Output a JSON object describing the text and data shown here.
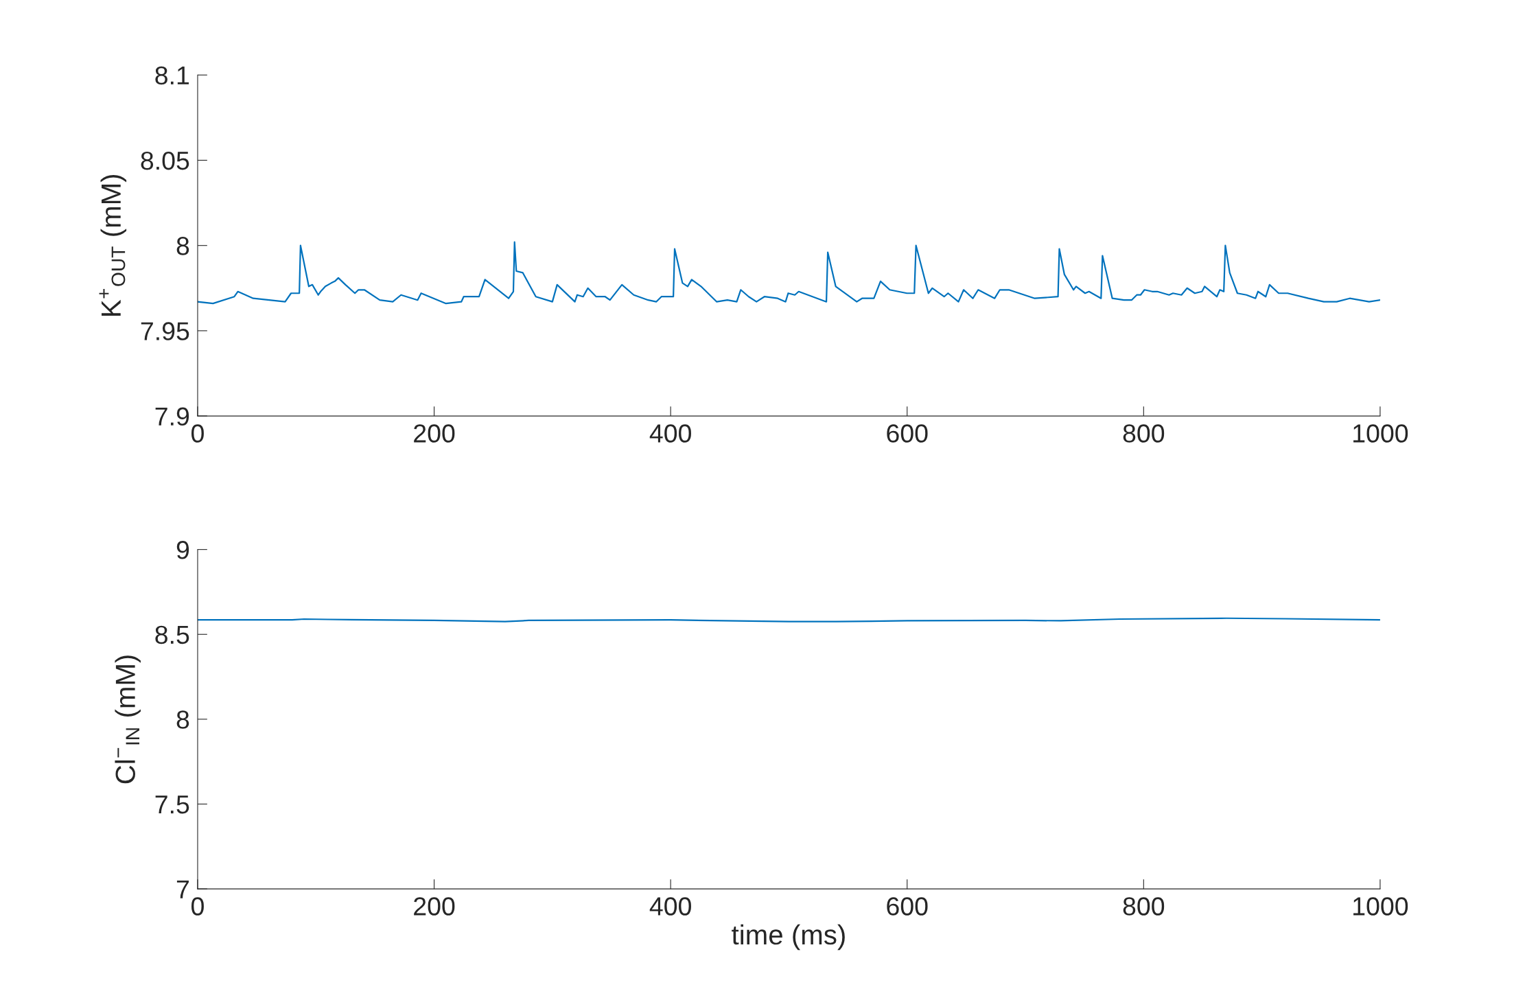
{
  "chart_data": [
    {
      "type": "line",
      "ylabel": "K$^{+}$$_{OUT}$ (mM)",
      "xlim": [
        0,
        1000
      ],
      "xticks": [
        0,
        200,
        400,
        600,
        800,
        1000
      ],
      "ylim": [
        7.9,
        8.1
      ],
      "yticks": [
        7.9,
        7.95,
        8,
        8.05,
        8.1
      ],
      "grid": false,
      "line_style": "solid",
      "marker": "none",
      "series": [
        {
          "color": "#0072bd",
          "x": [
            0,
            13,
            31,
            34,
            47,
            74,
            79,
            81,
            86,
            87,
            94,
            97,
            102,
            104,
            108,
            113,
            116,
            119,
            125,
            133,
            136,
            141,
            154,
            165,
            172,
            186,
            189,
            210,
            223,
            225,
            238,
            243,
            263,
            267,
            268,
            269.5,
            275,
            286,
            300,
            304,
            319,
            321,
            326,
            330,
            337,
            344.6,
            348.7,
            358.8,
            368.8,
            381,
            387.8,
            392.2,
            402.3,
            403.4,
            410,
            414.4,
            417.8,
            425.7,
            439,
            448,
            455.9,
            459.3,
            466,
            472.6,
            479.3,
            490.5,
            497.2,
            499.4,
            505,
            508.3,
            531.7,
            532.9,
            539.6,
            557.4,
            561.9,
            571.9,
            577.5,
            585.3,
            599.8,
            606.1,
            607.5,
            618,
            621.3,
            631.3,
            634.6,
            643.4,
            647.8,
            655.6,
            660.1,
            674,
            678.4,
            686,
            707.9,
            727.6,
            728.7,
            733,
            740.7,
            742.9,
            750.5,
            753.8,
            764,
            765.2,
            773.5,
            783.3,
            789.8,
            794.2,
            797.4,
            800.7,
            807.3,
            811.6,
            821.5,
            824.8,
            832,
            836.8,
            843.3,
            849.4,
            851.6,
            861.9,
            864.5,
            867.8,
            869.1,
            872.8,
            879.3,
            887,
            894.6,
            896.7,
            903.3,
            906.5,
            914.2,
            921.8,
            939.3,
            952.4,
            963.3,
            974.3,
            990.7,
            1000
          ],
          "values": [
            7.967,
            7.966,
            7.97,
            7.973,
            7.969,
            7.967,
            7.972,
            7.972,
            7.972,
            8.0,
            7.976,
            7.977,
            7.971,
            7.973,
            7.976,
            7.978,
            7.979,
            7.981,
            7.977,
            7.972,
            7.974,
            7.974,
            7.968,
            7.967,
            7.971,
            7.968,
            7.972,
            7.966,
            7.967,
            7.97,
            7.97,
            7.98,
            7.969,
            7.973,
            8.002,
            7.985,
            7.984,
            7.97,
            7.967,
            7.977,
            7.967,
            7.971,
            7.97,
            7.975,
            7.97,
            7.97,
            7.968,
            7.977,
            7.971,
            7.968,
            7.967,
            7.97,
            7.97,
            7.998,
            7.978,
            7.976,
            7.98,
            7.976,
            7.967,
            7.968,
            7.967,
            7.974,
            7.97,
            7.967,
            7.97,
            7.969,
            7.967,
            7.972,
            7.971,
            7.973,
            7.967,
            7.996,
            7.976,
            7.967,
            7.969,
            7.969,
            7.979,
            7.974,
            7.972,
            7.972,
            8.0,
            7.972,
            7.975,
            7.97,
            7.972,
            7.967,
            7.974,
            7.969,
            7.974,
            7.969,
            7.974,
            7.974,
            7.969,
            7.97,
            7.998,
            7.983,
            7.974,
            7.976,
            7.972,
            7.973,
            7.969,
            7.994,
            7.969,
            7.968,
            7.968,
            7.971,
            7.971,
            7.974,
            7.973,
            7.973,
            7.971,
            7.972,
            7.971,
            7.975,
            7.972,
            7.973,
            7.976,
            7.97,
            7.974,
            7.973,
            8.0,
            7.984,
            7.972,
            7.971,
            7.969,
            7.973,
            7.97,
            7.977,
            7.972,
            7.972,
            7.969,
            7.967,
            7.967,
            7.969,
            7.967,
            7.968
          ]
        }
      ]
    },
    {
      "type": "line",
      "xlabel": "time (ms)",
      "ylabel": "Cl$^{−}$$_{IN}$ (mM)",
      "xlim": [
        0,
        1000
      ],
      "xticks": [
        0,
        200,
        400,
        600,
        800,
        1000
      ],
      "ylim": [
        7,
        9
      ],
      "yticks": [
        7,
        7.5,
        8,
        8.5,
        9
      ],
      "grid": false,
      "line_style": "solid",
      "marker": "none",
      "series": [
        {
          "color": "#0072bd",
          "x": [
            0,
            80,
            90,
            110,
            200,
            260,
            280,
            400,
            500,
            540,
            600,
            700,
            730,
            780,
            870,
            920,
            1000
          ],
          "values": [
            8.585,
            8.585,
            8.59,
            8.588,
            8.582,
            8.575,
            8.582,
            8.585,
            8.575,
            8.575,
            8.58,
            8.582,
            8.58,
            8.59,
            8.595,
            8.592,
            8.585
          ]
        }
      ]
    }
  ]
}
